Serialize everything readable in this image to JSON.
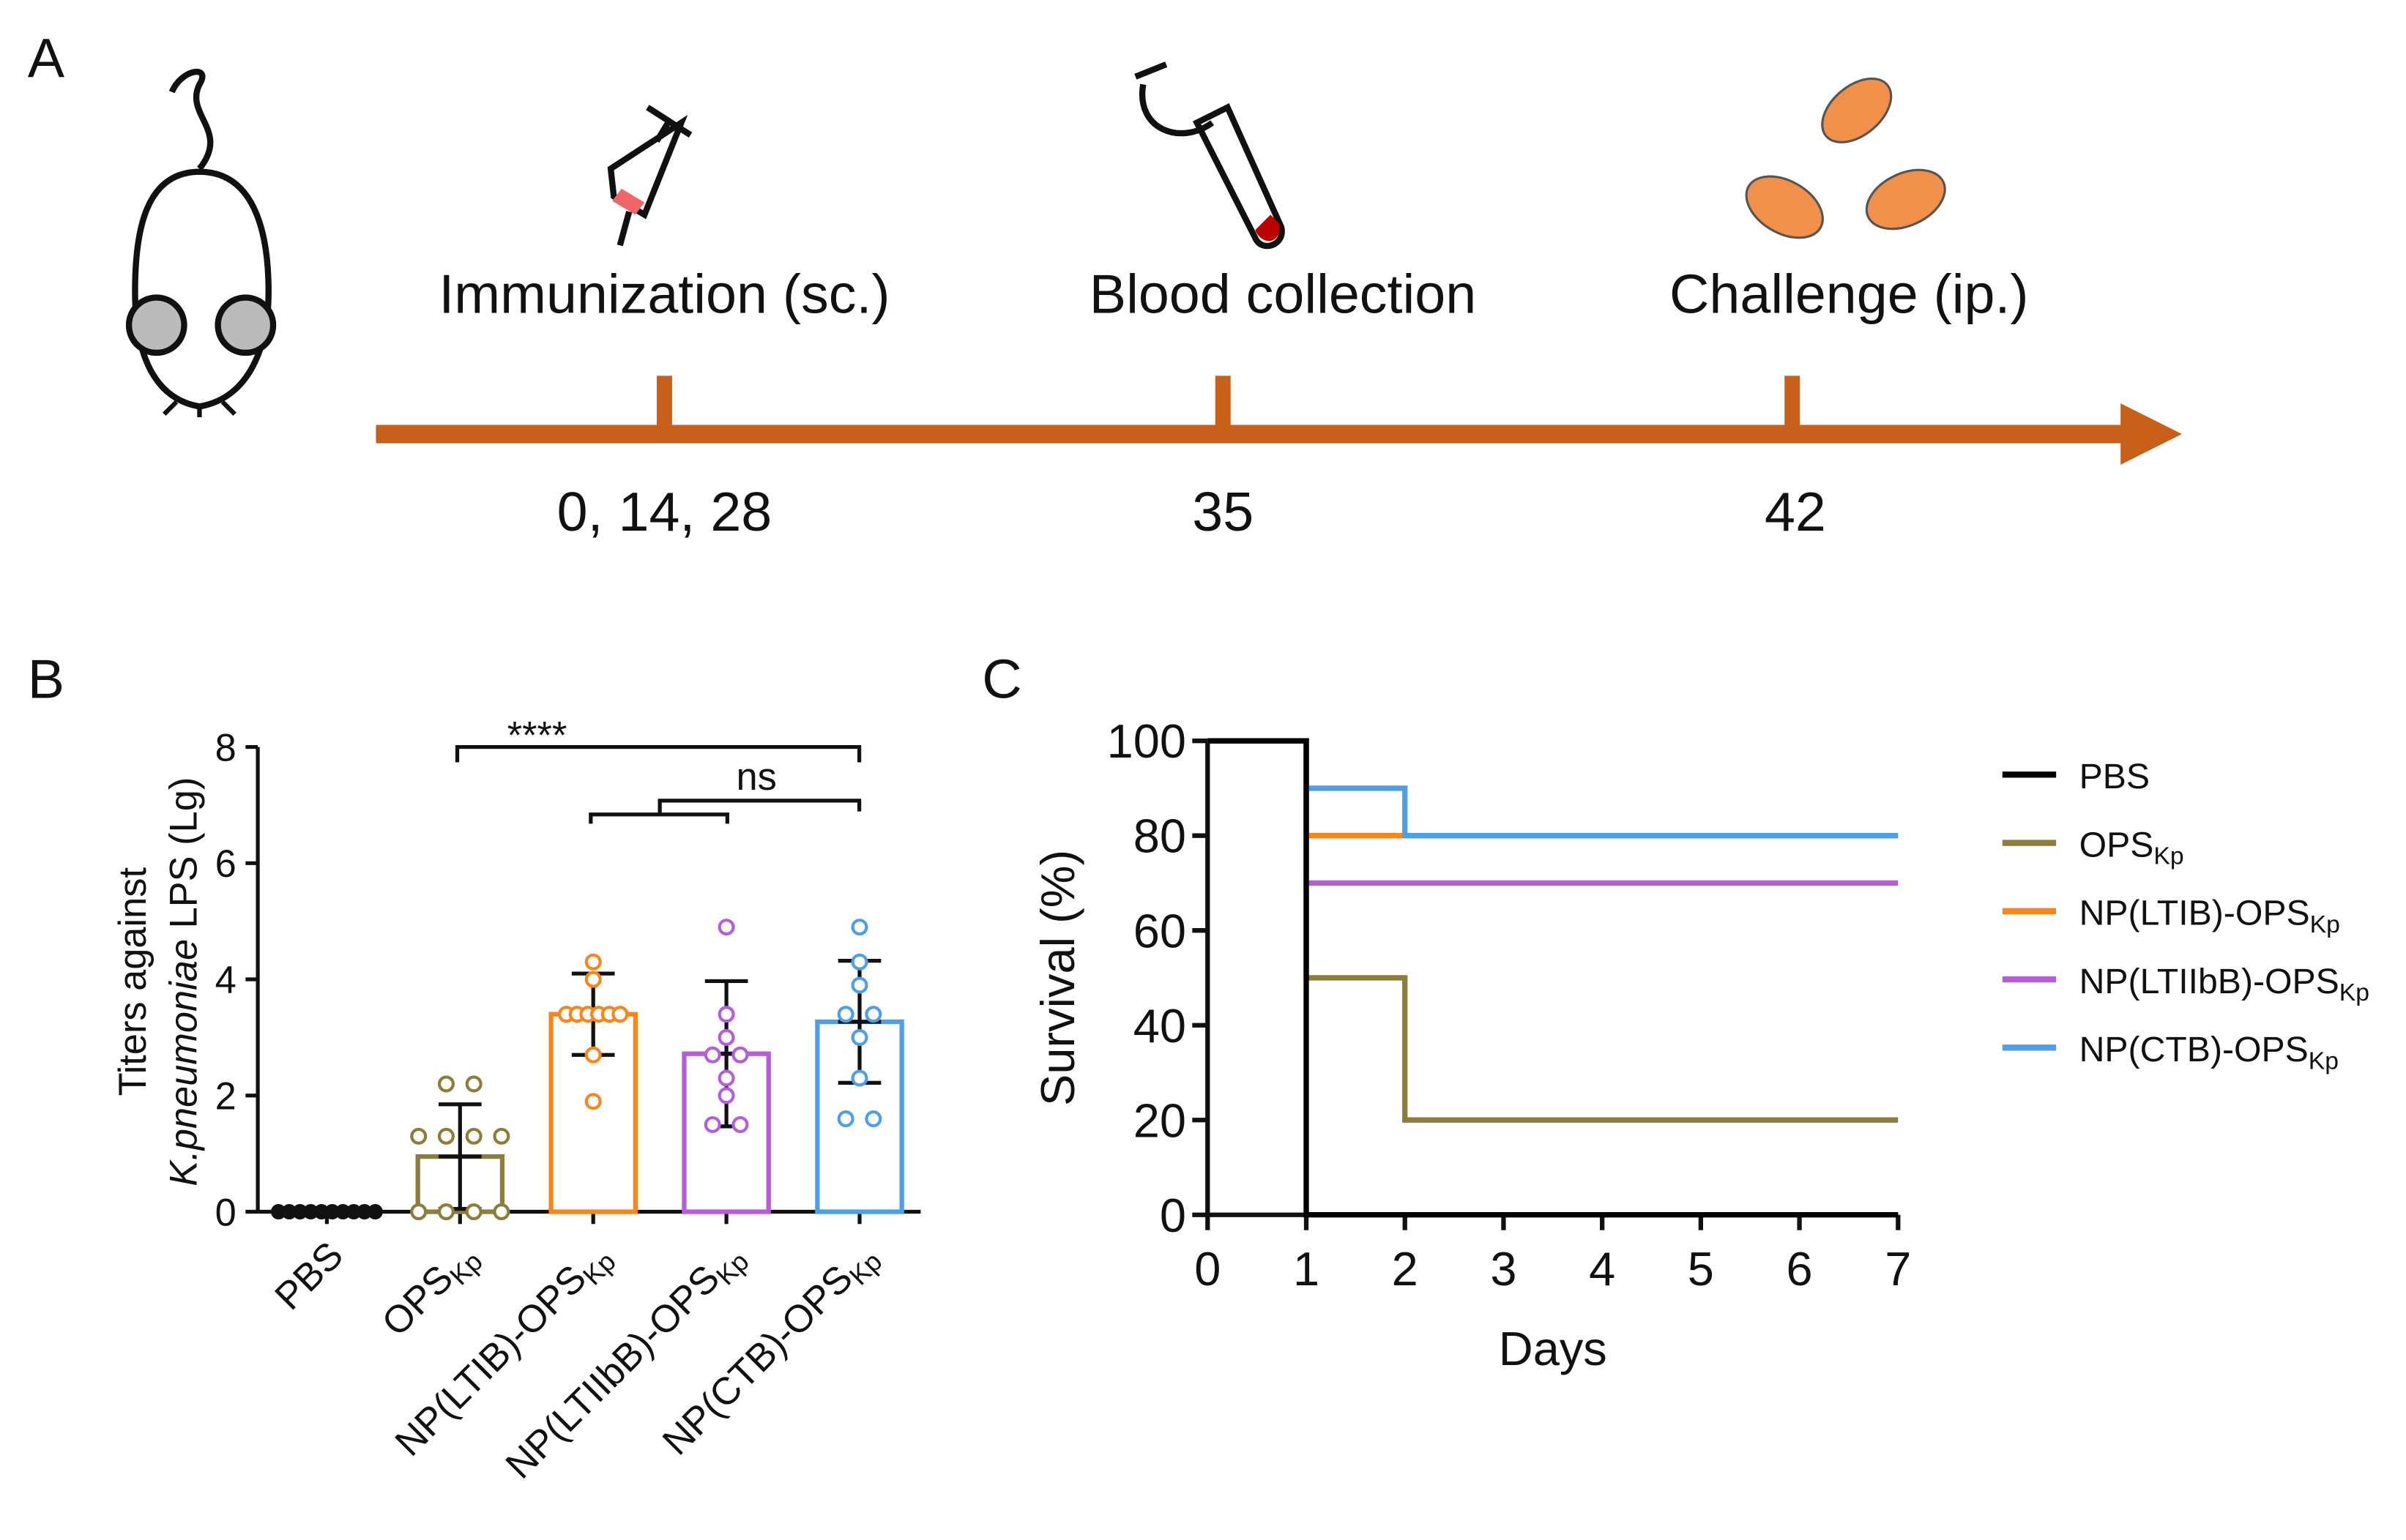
{
  "panel_a": {
    "label": "A",
    "steps": [
      {
        "label": "Immunization (sc.)",
        "days": "0, 14, 28"
      },
      {
        "label": "Blood collection",
        "days": "35"
      },
      {
        "label": "Challenge (ip.)",
        "days": "42"
      }
    ]
  },
  "chart_data": [
    {
      "type": "bar",
      "panel": "B",
      "subscript": "Kp",
      "ylabel": [
        "Titers against",
        "K.pneumoniae LPS (Lg)"
      ],
      "categories": [
        "PBS",
        "OPSKp",
        "NP(LTIB)-OPSKp",
        "NP(LTIIbB)-OPSKp",
        "NP(CTB)-OPSKp"
      ],
      "colors": [
        "#111111",
        "#8b7d3a",
        "#f7861c",
        "#b55ed9",
        "#4f9fe8"
      ],
      "values": [
        0,
        0.95,
        3.4,
        2.72,
        3.27
      ],
      "errors": [
        0,
        0.9,
        0.7,
        1.25,
        1.05
      ],
      "points": [
        [
          0,
          0,
          0,
          0,
          0,
          0,
          0,
          0,
          0,
          0
        ],
        [
          2.2,
          2.2,
          1.3,
          1.3,
          1.3,
          1.3,
          0,
          0,
          0,
          0
        ],
        [
          4.3,
          4.0,
          3.4,
          3.4,
          3.4,
          3.4,
          3.4,
          3.4,
          2.7,
          1.9
        ],
        [
          4.9,
          3.4,
          3.0,
          2.7,
          2.7,
          2.3,
          2.0,
          1.5,
          1.5
        ],
        [
          4.9,
          4.3,
          3.9,
          3.4,
          3.4,
          3.0,
          2.3,
          1.6,
          1.6
        ]
      ],
      "ylim": [
        0,
        8
      ],
      "yticks": [
        0,
        2,
        4,
        6,
        8
      ],
      "annotations": [
        "****",
        "ns"
      ]
    },
    {
      "type": "line",
      "panel": "C",
      "subscript": "Kp",
      "step": true,
      "xlabel": "Days",
      "ylabel": "Survival (%)",
      "x": [
        0,
        1,
        2,
        7
      ],
      "series": [
        {
          "name": "NP(LTIB)-OPSKp",
          "color": "#f7861c",
          "values": [
            100,
            80,
            80,
            80
          ]
        },
        {
          "name": "NP(LTIIbB)-OPSKp",
          "color": "#b55ed9",
          "values": [
            100,
            70,
            70,
            70
          ]
        },
        {
          "name": "NP(CTB)-OPSKp",
          "color": "#4f9fe8",
          "values": [
            100,
            90,
            80,
            80
          ]
        },
        {
          "name": "OPSKp",
          "color": "#8b7d3a",
          "values": [
            100,
            50,
            20,
            20
          ]
        },
        {
          "name": "PBS",
          "color": "#000000",
          "values": [
            100,
            0,
            0,
            0
          ]
        }
      ],
      "legend_order": [
        4,
        3,
        0,
        1,
        2
      ],
      "xlim": [
        0,
        7
      ],
      "xticks": [
        0,
        1,
        2,
        3,
        4,
        5,
        6,
        7
      ],
      "ylim": [
        0,
        100
      ],
      "yticks": [
        0,
        20,
        40,
        60,
        80,
        100
      ]
    }
  ]
}
